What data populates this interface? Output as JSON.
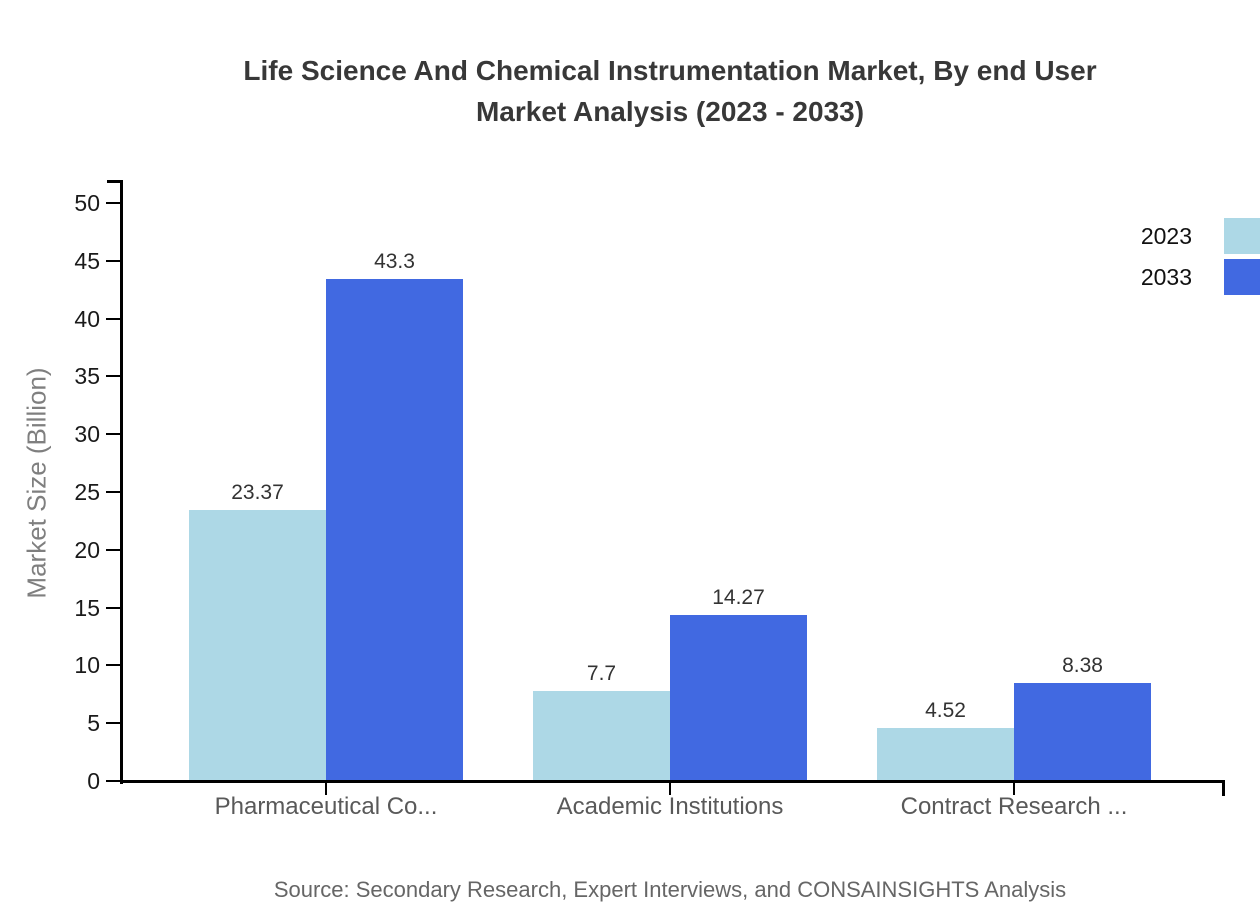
{
  "title": {
    "line1": "Life Science And Chemical Instrumentation Market, By end User",
    "line2": "Market Analysis (2023 - 2033)"
  },
  "source": "Source: Secondary Research, Expert Interviews, and CONSAINSIGHTS Analysis",
  "colors": {
    "series_2023": "#ADD8E6",
    "series_2033": "#4169E1",
    "axis": "#000000"
  },
  "chart_data": {
    "type": "bar",
    "title": "Life Science And Chemical Instrumentation Market, By end User Market Analysis (2023 - 2033)",
    "categories": [
      "Pharmaceutical Co...",
      "Academic Institutions",
      "Contract Research ..."
    ],
    "series": [
      {
        "name": "2023",
        "color": "#ADD8E6",
        "values": [
          23.37,
          7.7,
          4.52
        ]
      },
      {
        "name": "2033",
        "color": "#4169E1",
        "values": [
          43.3,
          14.27,
          8.38
        ]
      }
    ],
    "xlabel": "",
    "ylabel": "Market Size (Billion)",
    "ylim": [
      0,
      50
    ],
    "yticks": [
      0,
      5,
      10,
      15,
      20,
      25,
      30,
      35,
      40,
      45,
      50
    ],
    "grid": false,
    "legend_position": "top-right",
    "value_labels": [
      "23.37",
      "43.3",
      "7.7",
      "14.27",
      "4.52",
      "8.38"
    ]
  }
}
